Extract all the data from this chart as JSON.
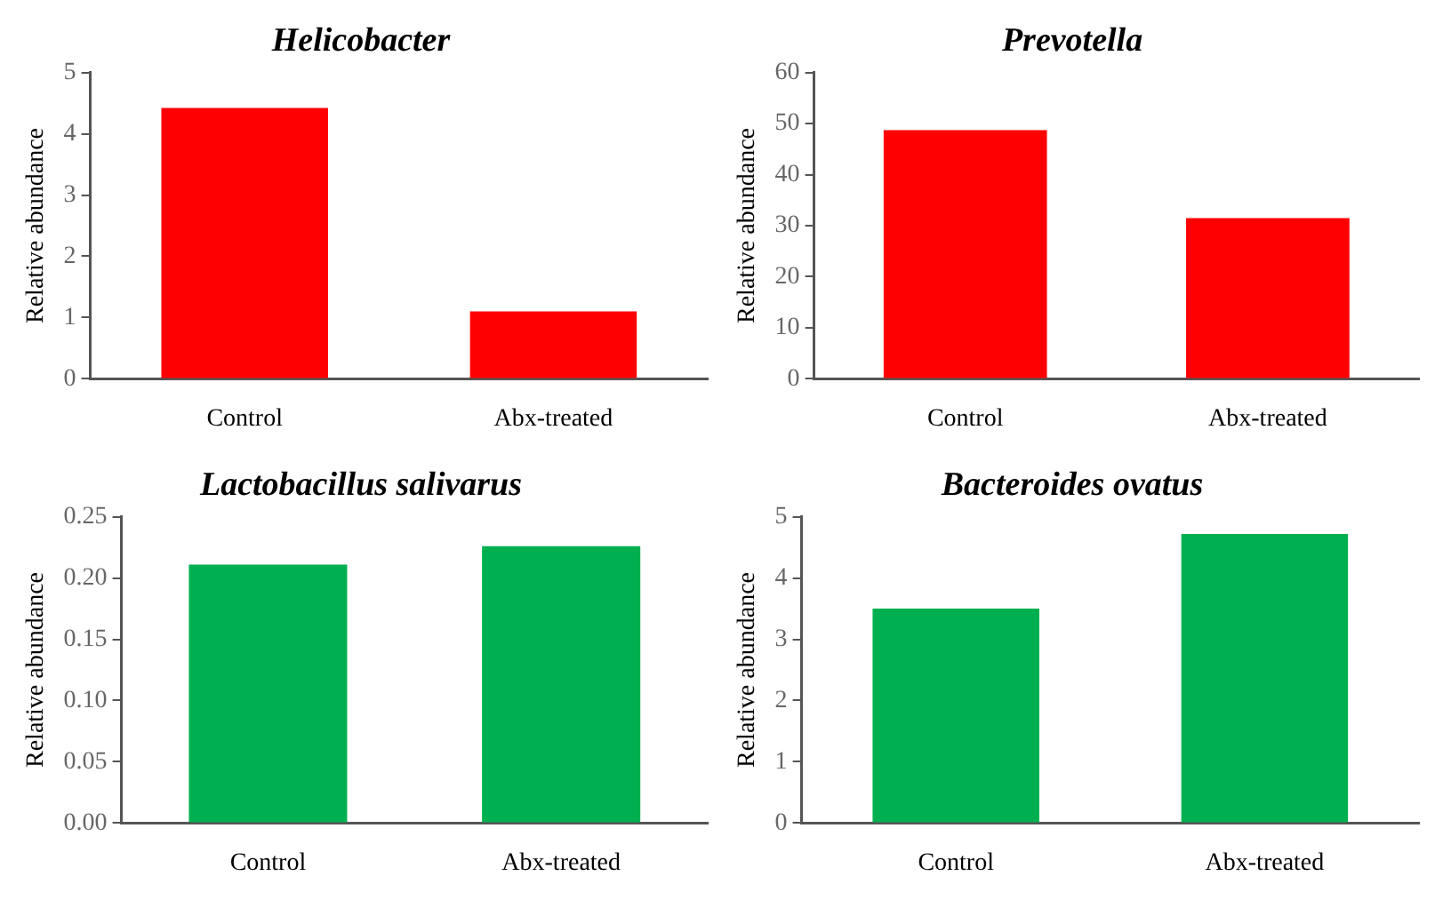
{
  "chart_data": [
    {
      "type": "bar",
      "title": "Helicobacter",
      "ylabel": "Relative abundance",
      "categories": [
        "Control",
        "Abx-treated"
      ],
      "values": [
        4.42,
        1.1
      ],
      "color": "#ff0000",
      "ylim": [
        0,
        5
      ],
      "yticks": [
        0,
        1,
        2,
        3,
        4,
        5
      ],
      "grid": false
    },
    {
      "type": "bar",
      "title": "Prevotella",
      "ylabel": "Relative abundance",
      "categories": [
        "Control",
        "Abx-treated"
      ],
      "values": [
        48.7,
        31.5
      ],
      "color": "#ff0000",
      "ylim": [
        0,
        60
      ],
      "yticks": [
        0,
        10,
        20,
        30,
        40,
        50,
        60
      ],
      "grid": false
    },
    {
      "type": "bar",
      "title": "Lactobacillus salivarus",
      "ylabel": "Relative abundance",
      "categories": [
        "Control",
        "Abx-treated"
      ],
      "values": [
        0.211,
        0.226
      ],
      "color": "#00b050",
      "ylim": [
        0,
        0.25
      ],
      "yticks": [
        {
          "value": 0,
          "label": "0.00"
        },
        {
          "value": 0.05,
          "label": "0.05"
        },
        {
          "value": 0.1,
          "label": "0.10"
        },
        {
          "value": 0.15,
          "label": "0.15"
        },
        {
          "value": 0.2,
          "label": "0.20"
        },
        {
          "value": 0.25,
          "label": "0.25"
        }
      ],
      "grid": false
    },
    {
      "type": "bar",
      "title": "Bacteroides ovatus",
      "ylabel": "Relative abundance",
      "categories": [
        "Control",
        "Abx-treated"
      ],
      "values": [
        3.5,
        4.72
      ],
      "color": "#00b050",
      "ylim": [
        0,
        5
      ],
      "yticks": [
        0,
        1,
        2,
        3,
        4,
        5
      ],
      "grid": false
    }
  ]
}
